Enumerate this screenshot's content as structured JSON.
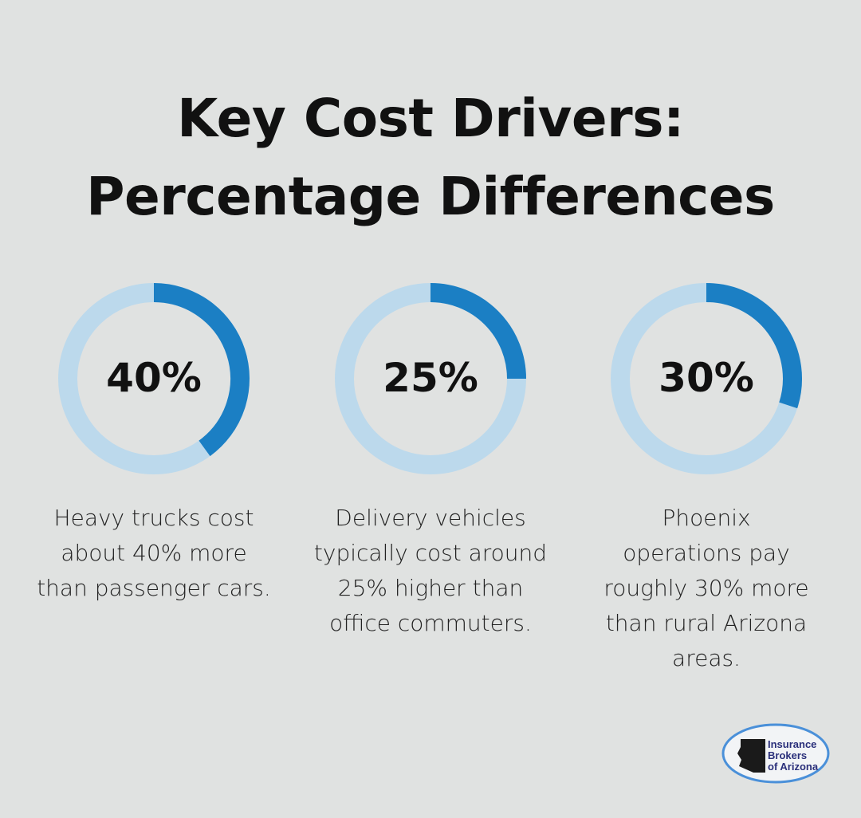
{
  "title": [
    "Key Cost Drivers:",
    "Percentage Differences"
  ],
  "colors": {
    "background": "#e0e2e1",
    "ring_fill": "#1b7fc4",
    "ring_track": "#bcd9ec"
  },
  "chart_data": [
    {
      "type": "pie",
      "variant": "donut",
      "value": 40,
      "max": 100,
      "label": "40%",
      "description": "Heavy trucks cost about 40% more than passenger cars."
    },
    {
      "type": "pie",
      "variant": "donut",
      "value": 25,
      "max": 100,
      "label": "25%",
      "description": "Delivery vehicles typically cost around 25% higher than office commuters."
    },
    {
      "type": "pie",
      "variant": "donut",
      "value": 30,
      "max": 100,
      "label": "30%",
      "description": "Phoenix operations pay roughly 30% more than rural Arizona areas."
    }
  ],
  "logo": {
    "text": [
      "Insurance",
      "Brokers",
      "of Arizona"
    ]
  }
}
